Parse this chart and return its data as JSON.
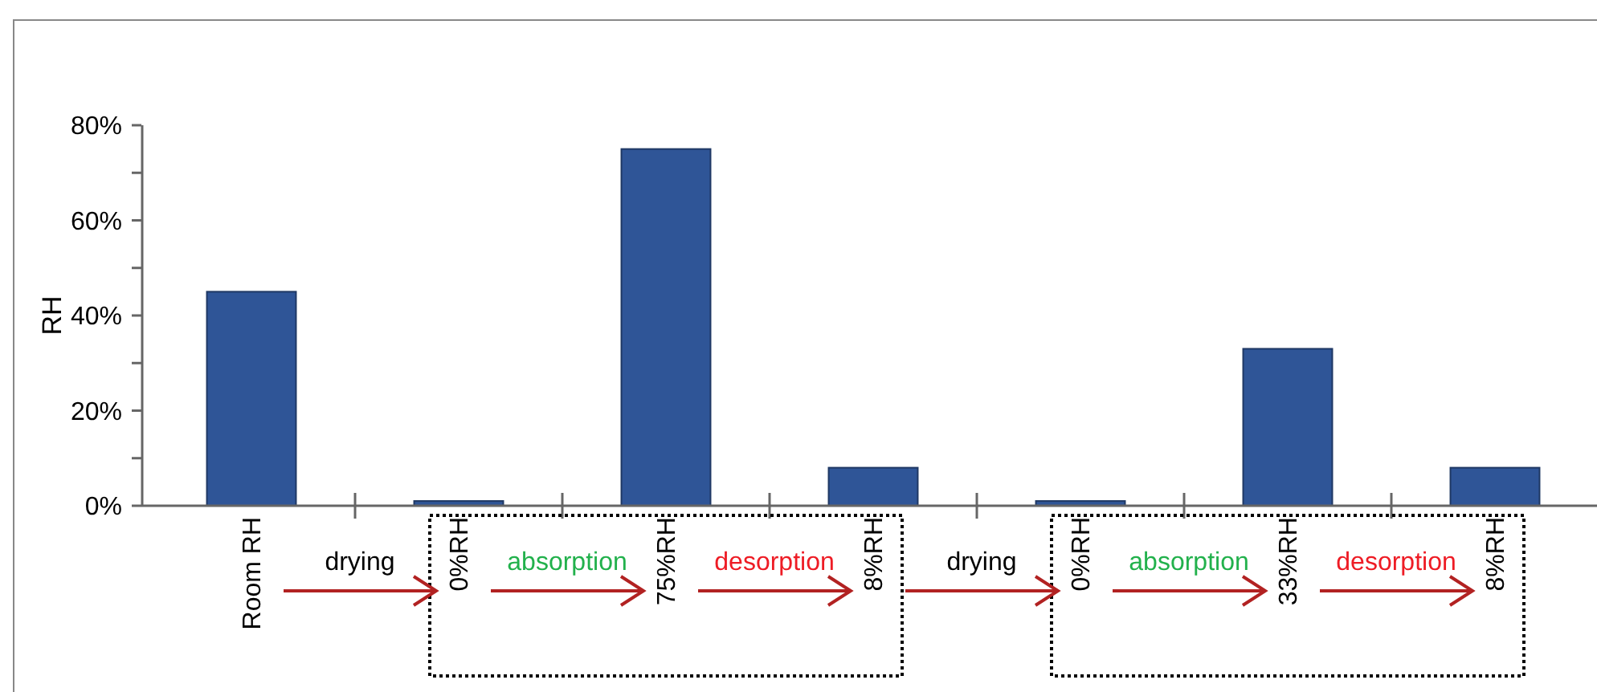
{
  "chart_data": {
    "type": "bar",
    "ylabel": "RH",
    "categories": [
      "Room RH",
      "0%RH",
      "75%RH",
      "8%RH",
      "0%RH",
      "33%RH",
      "8%RH"
    ],
    "values": [
      45,
      1,
      75,
      8,
      1,
      33,
      8
    ],
    "color": "#2f5597",
    "ylim": [
      0,
      80
    ],
    "yticks": [
      {
        "value": 0,
        "label": "0%"
      },
      {
        "value": 10,
        "label": null
      },
      {
        "value": 20,
        "label": "20%"
      },
      {
        "value": 30,
        "label": null
      },
      {
        "value": 40,
        "label": "40%"
      },
      {
        "value": 50,
        "label": null
      },
      {
        "value": 60,
        "label": "60%"
      },
      {
        "value": 70,
        "label": null
      },
      {
        "value": 80,
        "label": "80%"
      }
    ],
    "annotations": [
      "drying",
      "absorption",
      "desorption",
      "drying",
      "absorption",
      "desorption"
    ],
    "grid": false
  }
}
